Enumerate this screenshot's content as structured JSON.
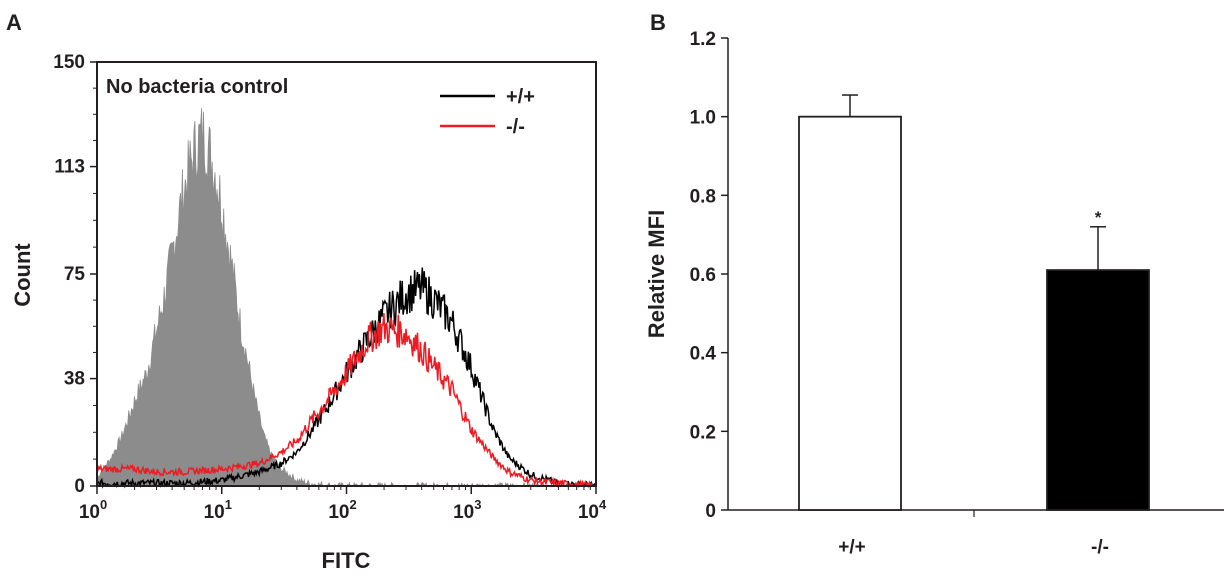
{
  "chart_data": [
    {
      "panel": "A",
      "type": "line",
      "annotation": "No bacteria control",
      "xlabel": "FITC",
      "ylabel": "Count",
      "x_scale": "log",
      "xlim": [
        1,
        10000
      ],
      "ylim": [
        0,
        150
      ],
      "x_ticks": [
        {
          "base": "10",
          "exp": "0",
          "value": 1
        },
        {
          "base": "10",
          "exp": "1",
          "value": 10
        },
        {
          "base": "10",
          "exp": "2",
          "value": 100
        },
        {
          "base": "10",
          "exp": "3",
          "value": 1000
        },
        {
          "base": "10",
          "exp": "4",
          "value": 10000
        }
      ],
      "y_ticks": [
        0,
        38,
        75,
        113,
        150
      ],
      "legend_position": "top-right",
      "series": [
        {
          "name": "",
          "color": "#8c8c8c",
          "style": "filled-histogram",
          "x": [
            1,
            1.3,
            1.6,
            2,
            2.5,
            3,
            3.5,
            4,
            4.5,
            5,
            5.5,
            6,
            6.5,
            7,
            7.5,
            8,
            9,
            10,
            11,
            12,
            13,
            14,
            16,
            18,
            20,
            22,
            25,
            30,
            35,
            40,
            50,
            60,
            80,
            100
          ],
          "y": [
            3,
            10,
            18,
            30,
            40,
            55,
            68,
            82,
            95,
            105,
            112,
            118,
            122,
            124,
            122,
            118,
            110,
            100,
            88,
            78,
            68,
            58,
            45,
            33,
            24,
            17,
            11,
            6,
            4,
            2,
            1,
            0.5,
            0,
            0
          ]
        },
        {
          "name": "+/+",
          "color": "#000000",
          "style": "line",
          "x": [
            1,
            2,
            5,
            10,
            20,
            30,
            40,
            50,
            70,
            100,
            150,
            200,
            300,
            400,
            500,
            700,
            1000,
            1500,
            2000,
            3000,
            5000,
            10000
          ],
          "y": [
            1,
            1,
            1,
            2,
            5,
            8,
            12,
            18,
            28,
            40,
            52,
            60,
            68,
            70,
            66,
            58,
            42,
            20,
            10,
            4,
            1,
            0
          ]
        },
        {
          "name": "-/-",
          "color": "#ed1c24",
          "style": "line",
          "x": [
            1,
            2,
            3,
            5,
            10,
            20,
            30,
            40,
            50,
            70,
            100,
            150,
            200,
            300,
            400,
            500,
            700,
            1000,
            1500,
            2000,
            3000,
            5000,
            10000
          ],
          "y": [
            6,
            6,
            5,
            5,
            6,
            8,
            12,
            16,
            22,
            30,
            40,
            52,
            56,
            54,
            48,
            42,
            34,
            20,
            10,
            5,
            2,
            1,
            0
          ]
        }
      ]
    },
    {
      "panel": "B",
      "type": "bar",
      "categories": [
        "+/+",
        "-/-"
      ],
      "values": [
        1.0,
        0.61
      ],
      "errors": [
        0.055,
        0.11
      ],
      "bar_colors": [
        "#ffffff",
        "#000000"
      ],
      "significance": [
        "",
        "*"
      ],
      "ylabel": "Relative MFI",
      "xlabel": "",
      "ylim": [
        0,
        1.2
      ],
      "y_ticks": [
        "0",
        "0.2",
        "0.4",
        "0.6",
        "0.8",
        "1.0",
        "1.2"
      ]
    }
  ]
}
